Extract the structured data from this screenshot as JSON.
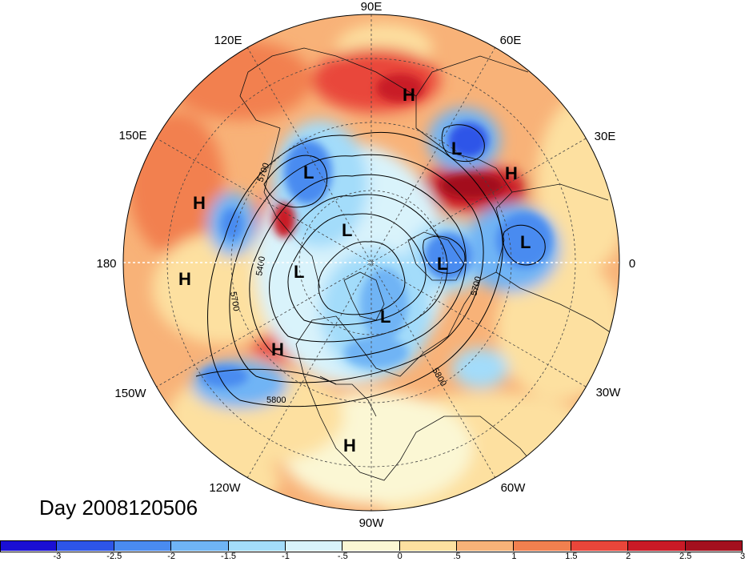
{
  "longitude_labels": {
    "lon_90e": "90E",
    "lon_60e": "60E",
    "lon_30e": "30E",
    "lon_0": "0",
    "lon_30w": "30W",
    "lon_60w": "60W",
    "lon_90w": "90W",
    "lon_120w": "120W",
    "lon_150w": "150W",
    "lon_180": "180",
    "lon_150e": "150E",
    "lon_120e": "120E"
  },
  "day_label": "Day 2008120506",
  "pressure_centers": [
    {
      "label": "H",
      "kind": "high"
    },
    {
      "label": "L",
      "kind": "low"
    },
    {
      "label": "H",
      "kind": "high"
    },
    {
      "label": "L",
      "kind": "low"
    },
    {
      "label": "L",
      "kind": "low"
    },
    {
      "label": "H",
      "kind": "high"
    },
    {
      "label": "H",
      "kind": "high"
    },
    {
      "label": "L",
      "kind": "low"
    },
    {
      "label": "L",
      "kind": "low"
    },
    {
      "label": "L",
      "kind": "low"
    },
    {
      "label": "L",
      "kind": "low"
    },
    {
      "label": "H",
      "kind": "high"
    },
    {
      "label": "H",
      "kind": "high"
    }
  ],
  "contour_labels": [
    "5700",
    "5400",
    "5700",
    "5700",
    "5800",
    "5800"
  ],
  "colorbar": {
    "colors": [
      "#1a0fd4",
      "#2d55e8",
      "#4a8bf0",
      "#6fb4f5",
      "#a3dcfa",
      "#d9f3fb",
      "#fbf7d4",
      "#fde0a0",
      "#f8b278",
      "#f2804f",
      "#e9463a",
      "#c91a26",
      "#a3101e"
    ],
    "tick_labels": [
      "-3",
      "-2.5",
      "-2",
      "-1.5",
      "-1",
      "-.5",
      "0",
      ".5",
      "1",
      "1.5",
      "2",
      "2.5",
      "3"
    ]
  }
}
